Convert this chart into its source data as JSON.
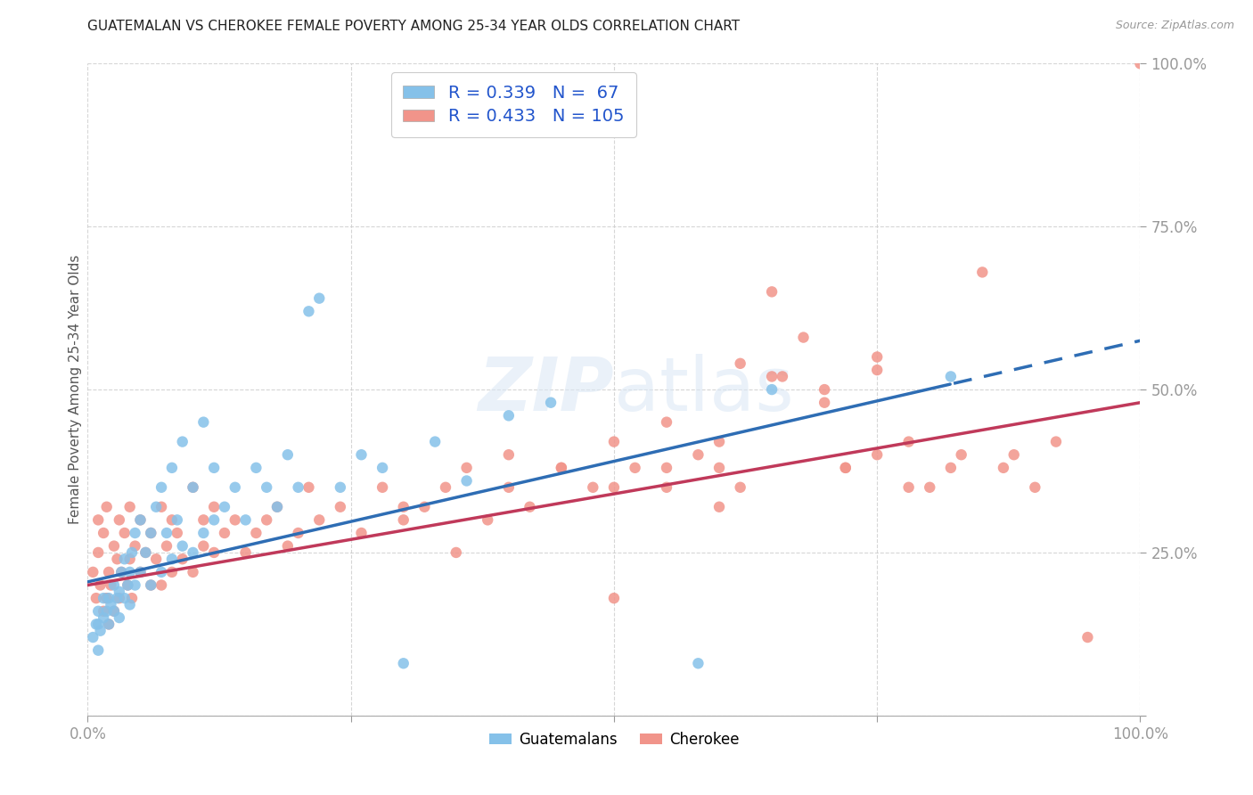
{
  "title": "GUATEMALAN VS CHEROKEE FEMALE POVERTY AMONG 25-34 YEAR OLDS CORRELATION CHART",
  "source": "Source: ZipAtlas.com",
  "ylabel": "Female Poverty Among 25-34 Year Olds",
  "xlim": [
    0.0,
    1.0
  ],
  "ylim": [
    0.0,
    1.0
  ],
  "guatemalan_color": "#85C1E9",
  "cherokee_color": "#F1948A",
  "trend_blue": "#2E6DB4",
  "trend_pink": "#C0395A",
  "trend_blue_dashed_start": 0.82,
  "R_guatemalan": 0.339,
  "N_guatemalan": 67,
  "R_cherokee": 0.433,
  "N_cherokee": 105,
  "blue_intercept": 0.205,
  "blue_slope": 0.37,
  "pink_intercept": 0.2,
  "pink_slope": 0.28,
  "guatemalan_x": [
    0.005,
    0.008,
    0.01,
    0.01,
    0.01,
    0.012,
    0.015,
    0.015,
    0.018,
    0.02,
    0.02,
    0.022,
    0.025,
    0.025,
    0.028,
    0.03,
    0.03,
    0.032,
    0.035,
    0.035,
    0.038,
    0.04,
    0.04,
    0.042,
    0.045,
    0.045,
    0.05,
    0.05,
    0.055,
    0.06,
    0.06,
    0.065,
    0.07,
    0.07,
    0.075,
    0.08,
    0.08,
    0.085,
    0.09,
    0.09,
    0.1,
    0.1,
    0.11,
    0.11,
    0.12,
    0.12,
    0.13,
    0.14,
    0.15,
    0.16,
    0.17,
    0.18,
    0.19,
    0.2,
    0.21,
    0.22,
    0.24,
    0.26,
    0.28,
    0.3,
    0.33,
    0.36,
    0.4,
    0.44,
    0.58,
    0.65,
    0.82
  ],
  "guatemalan_y": [
    0.12,
    0.14,
    0.1,
    0.14,
    0.16,
    0.13,
    0.15,
    0.18,
    0.16,
    0.14,
    0.18,
    0.17,
    0.16,
    0.2,
    0.18,
    0.15,
    0.19,
    0.22,
    0.18,
    0.24,
    0.2,
    0.17,
    0.22,
    0.25,
    0.2,
    0.28,
    0.22,
    0.3,
    0.25,
    0.2,
    0.28,
    0.32,
    0.22,
    0.35,
    0.28,
    0.24,
    0.38,
    0.3,
    0.26,
    0.42,
    0.25,
    0.35,
    0.28,
    0.45,
    0.3,
    0.38,
    0.32,
    0.35,
    0.3,
    0.38,
    0.35,
    0.32,
    0.4,
    0.35,
    0.62,
    0.64,
    0.35,
    0.4,
    0.38,
    0.08,
    0.42,
    0.36,
    0.46,
    0.48,
    0.08,
    0.5,
    0.52
  ],
  "cherokee_x": [
    0.005,
    0.008,
    0.01,
    0.01,
    0.012,
    0.015,
    0.015,
    0.018,
    0.018,
    0.02,
    0.02,
    0.022,
    0.025,
    0.025,
    0.028,
    0.03,
    0.03,
    0.032,
    0.035,
    0.038,
    0.04,
    0.04,
    0.042,
    0.045,
    0.05,
    0.05,
    0.055,
    0.06,
    0.06,
    0.065,
    0.07,
    0.07,
    0.075,
    0.08,
    0.08,
    0.085,
    0.09,
    0.1,
    0.1,
    0.11,
    0.11,
    0.12,
    0.12,
    0.13,
    0.14,
    0.15,
    0.16,
    0.17,
    0.18,
    0.19,
    0.2,
    0.21,
    0.22,
    0.24,
    0.26,
    0.28,
    0.3,
    0.32,
    0.34,
    0.36,
    0.38,
    0.4,
    0.42,
    0.45,
    0.48,
    0.5,
    0.52,
    0.55,
    0.58,
    0.6,
    0.62,
    0.65,
    0.68,
    0.72,
    0.75,
    0.78,
    0.82,
    0.85,
    0.88,
    0.9,
    0.92,
    0.95,
    0.72,
    0.78,
    0.83,
    0.87,
    0.6,
    0.55,
    0.5,
    0.45,
    0.4,
    0.35,
    0.3,
    0.5,
    0.55,
    0.6,
    0.65,
    0.7,
    0.75,
    0.8,
    0.62,
    0.66,
    0.7,
    0.75,
    1.0
  ],
  "cherokee_y": [
    0.22,
    0.18,
    0.25,
    0.3,
    0.2,
    0.16,
    0.28,
    0.18,
    0.32,
    0.14,
    0.22,
    0.2,
    0.26,
    0.16,
    0.24,
    0.18,
    0.3,
    0.22,
    0.28,
    0.2,
    0.24,
    0.32,
    0.18,
    0.26,
    0.22,
    0.3,
    0.25,
    0.2,
    0.28,
    0.24,
    0.2,
    0.32,
    0.26,
    0.22,
    0.3,
    0.28,
    0.24,
    0.22,
    0.35,
    0.26,
    0.3,
    0.25,
    0.32,
    0.28,
    0.3,
    0.25,
    0.28,
    0.3,
    0.32,
    0.26,
    0.28,
    0.35,
    0.3,
    0.32,
    0.28,
    0.35,
    0.3,
    0.32,
    0.35,
    0.38,
    0.3,
    0.35,
    0.32,
    0.38,
    0.35,
    0.18,
    0.38,
    0.35,
    0.4,
    0.42,
    0.35,
    0.65,
    0.58,
    0.38,
    0.4,
    0.42,
    0.38,
    0.68,
    0.4,
    0.35,
    0.42,
    0.12,
    0.38,
    0.35,
    0.4,
    0.38,
    0.32,
    0.38,
    0.35,
    0.38,
    0.4,
    0.25,
    0.32,
    0.42,
    0.45,
    0.38,
    0.52,
    0.48,
    0.55,
    0.35,
    0.54,
    0.52,
    0.5,
    0.53,
    1.0
  ]
}
